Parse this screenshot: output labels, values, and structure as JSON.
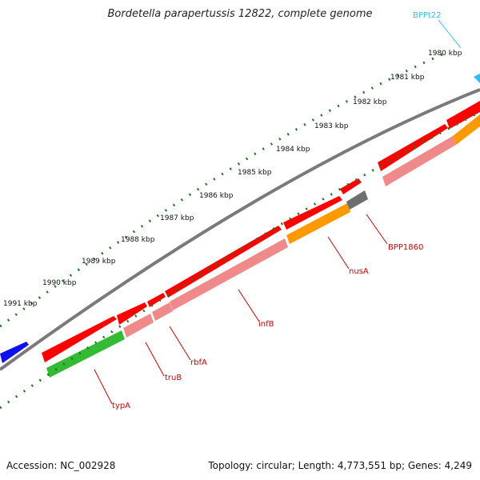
{
  "title": "Bordetella parapertussis 12822, complete genome",
  "footer": {
    "accession": "Accession: NC_002928",
    "topology": "Topology: circular; Length: 4,773,551 bp; Genes: 4,249"
  },
  "colors": {
    "backbone": "#7a7a7a",
    "gene_cds": "#ff0000",
    "gene_cds_light": "#f08a8a",
    "gene_other": "#1010ee",
    "rrna_green": "#33bb33",
    "nusA_orange": "#ff9900",
    "pseudo_gray": "#6e6e6e",
    "trna_cyan": "#33bbee",
    "label_red": "#cc0000",
    "tick_green": "#227722"
  },
  "ticks": [
    {
      "label": "1980 kbp"
    },
    {
      "label": "1981 kbp"
    },
    {
      "label": "1982 kbp"
    },
    {
      "label": "1983 kbp"
    },
    {
      "label": "1984 kbp"
    },
    {
      "label": "1985 kbp"
    },
    {
      "label": "1986 kbp"
    },
    {
      "label": "1987 kbp"
    },
    {
      "label": "1988 kbp"
    },
    {
      "label": "1989 kbp"
    },
    {
      "label": "1990 kbp"
    },
    {
      "label": "1991 kbp"
    }
  ],
  "genes": [
    {
      "name": "typA"
    },
    {
      "name": "truB"
    },
    {
      "name": "rbfA"
    },
    {
      "name": "infB"
    },
    {
      "name": "nusA"
    },
    {
      "name": "BPP1860"
    },
    {
      "name": "BPPt22"
    }
  ]
}
